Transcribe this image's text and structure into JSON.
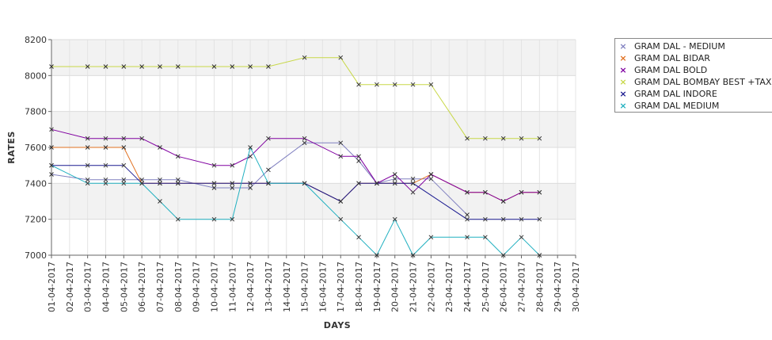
{
  "chart_data": {
    "type": "line",
    "xlabel": "DAYS",
    "ylabel": "RATES",
    "ylim": [
      7000,
      8200
    ],
    "yticks": [
      7000,
      7200,
      7400,
      7600,
      7800,
      8000,
      8200
    ],
    "grid": true,
    "legend_position": "top-right",
    "categories": [
      "01-04-2017",
      "02-04-2017",
      "03-04-2017",
      "04-04-2017",
      "05-04-2017",
      "06-04-2017",
      "07-04-2017",
      "08-04-2017",
      "09-04-2017",
      "10-04-2017",
      "11-04-2017",
      "12-04-2017",
      "13-04-2017",
      "14-04-2017",
      "15-04-2017",
      "16-04-2017",
      "17-04-2017",
      "18-04-2017",
      "19-04-2017",
      "20-04-2017",
      "21-04-2017",
      "22-04-2017",
      "23-04-2017",
      "24-04-2017",
      "25-04-2017",
      "26-04-2017",
      "27-04-2017",
      "28-04-2017",
      "29-04-2017",
      "30-04-2017"
    ],
    "series": [
      {
        "name": "GRAM DAL - MEDIUM",
        "color": "#8080c0",
        "values": [
          7450,
          null,
          7420,
          7420,
          7420,
          7420,
          7420,
          7420,
          null,
          7375,
          7375,
          7375,
          7475,
          null,
          7625,
          null,
          7625,
          7525,
          7400,
          7425,
          7425,
          7425,
          null,
          7225,
          null,
          null,
          null,
          null,
          null,
          null
        ]
      },
      {
        "name": "GRAM DAL BIDAR",
        "color": "#e07020",
        "values": [
          7600,
          null,
          7600,
          7600,
          7600,
          7400,
          7400,
          7400,
          null,
          7400,
          7400,
          7400,
          7400,
          null,
          7400,
          null,
          7300,
          7400,
          7400,
          7400,
          7400,
          7450,
          null,
          7350,
          7350,
          7300,
          7350,
          7350,
          null,
          null
        ]
      },
      {
        "name": "GRAM DAL BOLD",
        "color": "#8000a0",
        "values": [
          7700,
          null,
          7650,
          7650,
          7650,
          7650,
          7600,
          7550,
          null,
          7500,
          7500,
          7550,
          7650,
          null,
          7650,
          null,
          7550,
          7550,
          7400,
          7450,
          7350,
          7450,
          null,
          7350,
          7350,
          7300,
          7350,
          7350,
          null,
          null
        ]
      },
      {
        "name": "GRAM DAL BOMBAY BEST +TAX",
        "color": "#c8d848",
        "values": [
          8050,
          null,
          8050,
          8050,
          8050,
          8050,
          8050,
          8050,
          null,
          8050,
          8050,
          8050,
          8050,
          null,
          8100,
          null,
          8100,
          7950,
          7950,
          7950,
          7950,
          7950,
          null,
          7650,
          7650,
          7650,
          7650,
          7650,
          null,
          null
        ]
      },
      {
        "name": "GRAM DAL INDORE",
        "color": "#1a1a90",
        "values": [
          7500,
          null,
          7500,
          7500,
          7500,
          7400,
          7400,
          7400,
          null,
          7400,
          7400,
          7400,
          7400,
          null,
          7400,
          null,
          7300,
          7400,
          7400,
          7400,
          7400,
          null,
          null,
          7200,
          7200,
          7200,
          7200,
          7200,
          null,
          null
        ]
      },
      {
        "name": "GRAM DAL MEDIUM",
        "color": "#20b0c0",
        "values": [
          7500,
          null,
          7400,
          7400,
          7400,
          7400,
          7300,
          7200,
          null,
          7200,
          7200,
          7600,
          7400,
          null,
          7400,
          null,
          7200,
          7100,
          7000,
          7200,
          7000,
          7100,
          null,
          7100,
          7100,
          7000,
          7100,
          7000,
          null,
          null
        ]
      }
    ]
  }
}
